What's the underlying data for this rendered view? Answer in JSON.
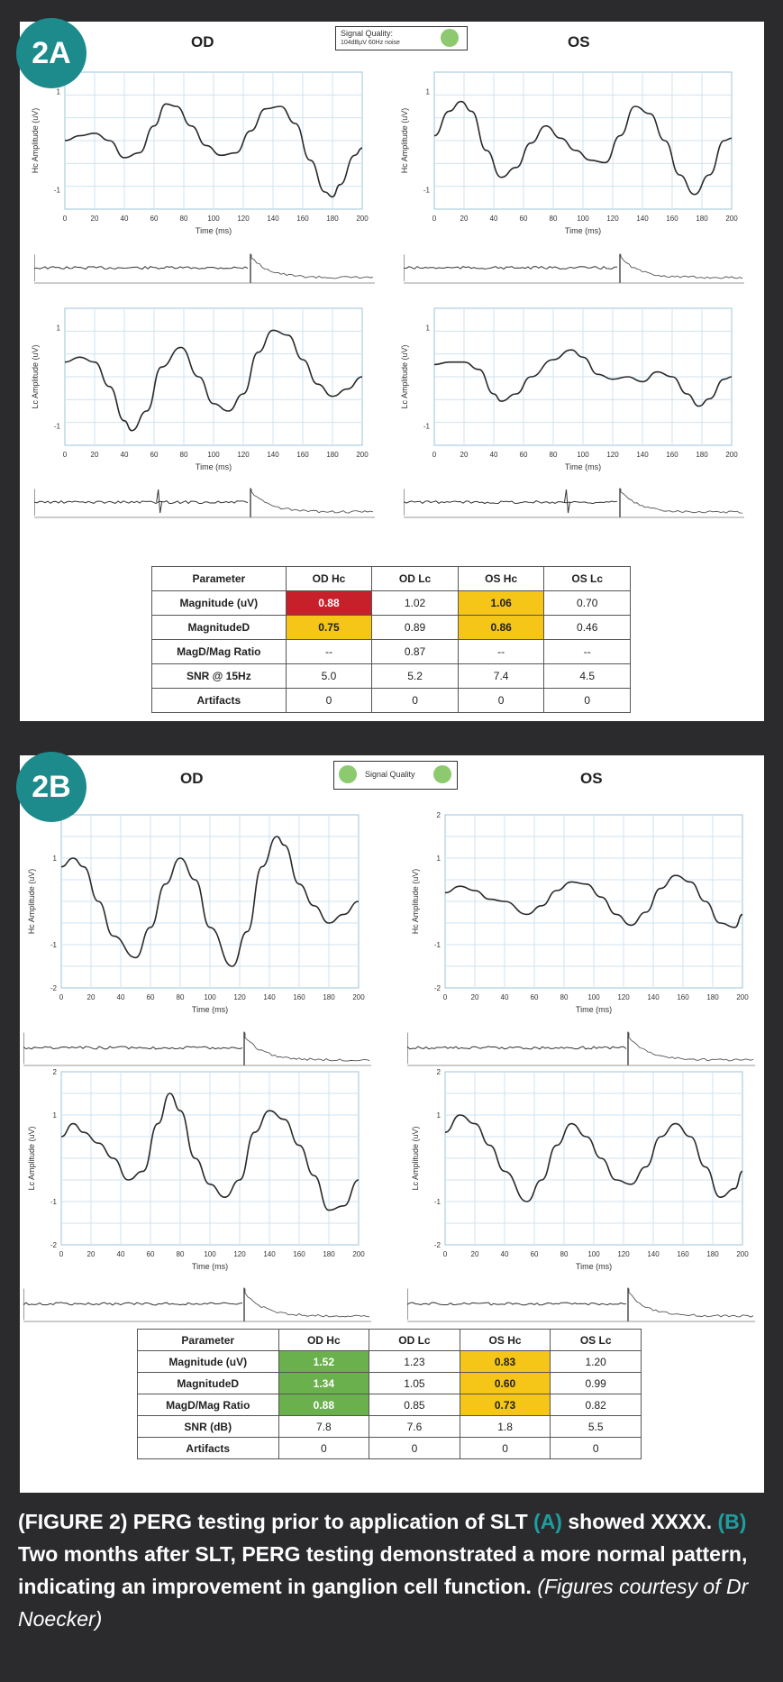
{
  "panels": [
    {
      "badge": "2A",
      "eye_left": "OD",
      "eye_right": "OS",
      "signal_quality": {
        "label": "Signal Quality:",
        "detail": "104dBµV 60Hz noise",
        "indicator_color": "#8dc96f"
      },
      "table": {
        "headers": [
          "Parameter",
          "OD Hc",
          "OD Lc",
          "OS Hc",
          "OS Lc"
        ],
        "rows": [
          {
            "cells": [
              "Magnitude (uV)",
              "0.88",
              "1.02",
              "1.06",
              "0.70"
            ],
            "highlight": [
              null,
              "#c8202a",
              null,
              "#f5c518",
              null
            ]
          },
          {
            "cells": [
              "MagnitudeD",
              "0.75",
              "0.89",
              "0.86",
              "0.46"
            ],
            "highlight": [
              null,
              "#f5c518",
              null,
              "#f5c518",
              null
            ]
          },
          {
            "cells": [
              "MagD/Mag Ratio",
              "--",
              "0.87",
              "--",
              "--"
            ],
            "highlight": [
              null,
              null,
              null,
              null,
              null
            ]
          },
          {
            "cells": [
              "SNR @ 15Hz",
              "5.0",
              "5.2",
              "7.4",
              "4.5"
            ],
            "highlight": [
              null,
              null,
              null,
              null,
              null
            ]
          },
          {
            "cells": [
              "Artifacts",
              "0",
              "0",
              "0",
              "0"
            ],
            "highlight": [
              null,
              null,
              null,
              null,
              null
            ]
          }
        ]
      }
    },
    {
      "badge": "2B",
      "eye_left": "OD",
      "eye_right": "OS",
      "signal_quality": {
        "label": "Signal Quality",
        "detail": "",
        "indicator_color": "#8dc96f"
      },
      "table": {
        "headers": [
          "Parameter",
          "OD Hc",
          "OD Lc",
          "OS Hc",
          "OS Lc"
        ],
        "rows": [
          {
            "cells": [
              "Magnitude (uV)",
              "1.52",
              "1.23",
              "0.83",
              "1.20"
            ],
            "highlight": [
              null,
              "#6ab04c",
              null,
              "#f5c518",
              null
            ]
          },
          {
            "cells": [
              "MagnitudeD",
              "1.34",
              "1.05",
              "0.60",
              "0.99"
            ],
            "highlight": [
              null,
              "#6ab04c",
              null,
              "#f5c518",
              null
            ]
          },
          {
            "cells": [
              "MagD/Mag Ratio",
              "0.88",
              "0.85",
              "0.73",
              "0.82"
            ],
            "highlight": [
              null,
              "#6ab04c",
              null,
              "#f5c518",
              null
            ]
          },
          {
            "cells": [
              "SNR (dB)",
              "7.8",
              "7.6",
              "1.8",
              "5.5"
            ],
            "highlight": [
              null,
              null,
              null,
              null,
              null
            ]
          },
          {
            "cells": [
              "Artifacts",
              "0",
              "0",
              "0",
              "0"
            ],
            "highlight": [
              null,
              null,
              null,
              null,
              null
            ]
          }
        ]
      }
    }
  ],
  "chart_data": [
    {
      "id": "a-od-hc",
      "type": "line",
      "panel": "2A",
      "eye": "OD",
      "ylabel": "Hc Amplitude (uV)",
      "xlabel": "Time (ms)",
      "xlim": [
        0,
        200
      ],
      "ylim": [
        -1.4,
        1.4
      ],
      "yticks": [
        1,
        -1
      ],
      "ytick_labels": [
        "1",
        "-1"
      ],
      "xticks": [
        0,
        20,
        40,
        60,
        80,
        100,
        120,
        140,
        160,
        180,
        200
      ],
      "xtick_labels": [
        "0",
        "20",
        "40",
        "60",
        "80",
        "100",
        "120",
        "140",
        "160",
        "180",
        "200"
      ],
      "x": [
        0,
        10,
        20,
        30,
        40,
        50,
        60,
        68,
        75,
        85,
        95,
        105,
        115,
        125,
        135,
        145,
        155,
        165,
        175,
        180,
        185,
        195,
        200
      ],
      "y": [
        0.0,
        0.1,
        0.15,
        0.0,
        -0.35,
        -0.25,
        0.3,
        0.75,
        0.7,
        0.3,
        -0.1,
        -0.3,
        -0.25,
        0.2,
        0.65,
        0.7,
        0.35,
        -0.4,
        -1.05,
        -1.15,
        -0.9,
        -0.3,
        -0.15
      ]
    },
    {
      "id": "a-os-hc",
      "type": "line",
      "panel": "2A",
      "eye": "OS",
      "ylabel": "Hc Amplitude (uV)",
      "xlabel": "Time (ms)",
      "xlim": [
        0,
        200
      ],
      "ylim": [
        -1.4,
        1.4
      ],
      "yticks": [
        1,
        -1
      ],
      "ytick_labels": [
        "1",
        "-1"
      ],
      "xticks": [
        0,
        20,
        40,
        60,
        80,
        100,
        120,
        140,
        160,
        180,
        200
      ],
      "xtick_labels": [
        "0",
        "20",
        "40",
        "60",
        "80",
        "100",
        "120",
        "140",
        "160",
        "180",
        "200"
      ],
      "x": [
        0,
        10,
        18,
        25,
        35,
        45,
        55,
        65,
        75,
        85,
        95,
        105,
        115,
        125,
        135,
        145,
        155,
        165,
        175,
        185,
        195,
        200
      ],
      "y": [
        0.1,
        0.6,
        0.8,
        0.6,
        -0.2,
        -0.75,
        -0.55,
        -0.05,
        0.3,
        0.05,
        -0.2,
        -0.4,
        -0.45,
        0.1,
        0.7,
        0.55,
        0.0,
        -0.7,
        -1.1,
        -0.7,
        0.0,
        0.05
      ]
    },
    {
      "id": "a-od-lc",
      "type": "line",
      "panel": "2A",
      "eye": "OD",
      "ylabel": "Lc Amplitude (uV)",
      "xlabel": "Time (ms)",
      "xlim": [
        0,
        200
      ],
      "ylim": [
        -1.4,
        1.4
      ],
      "yticks": [
        1,
        -1
      ],
      "ytick_labels": [
        "1",
        "-1"
      ],
      "xticks": [
        0,
        20,
        40,
        60,
        80,
        100,
        120,
        140,
        160,
        180,
        200
      ],
      "xtick_labels": [
        "0",
        "20",
        "40",
        "60",
        "80",
        "100",
        "120",
        "140",
        "160",
        "180",
        "200"
      ],
      "x": [
        0,
        10,
        20,
        30,
        40,
        45,
        55,
        65,
        78,
        90,
        100,
        110,
        120,
        130,
        140,
        150,
        160,
        170,
        180,
        190,
        200
      ],
      "y": [
        0.3,
        0.4,
        0.3,
        -0.2,
        -0.9,
        -1.1,
        -0.7,
        0.2,
        0.6,
        0.0,
        -0.55,
        -0.7,
        -0.35,
        0.5,
        0.95,
        0.85,
        0.35,
        -0.15,
        -0.4,
        -0.25,
        0.0
      ]
    },
    {
      "id": "a-os-lc",
      "type": "line",
      "panel": "2A",
      "eye": "OS",
      "ylabel": "Lc Amplitude (uV)",
      "xlabel": "Time (ms)",
      "xlim": [
        0,
        200
      ],
      "ylim": [
        -1.4,
        1.4
      ],
      "yticks": [
        1,
        -1
      ],
      "ytick_labels": [
        "1",
        "-1"
      ],
      "xticks": [
        0,
        20,
        40,
        60,
        80,
        100,
        120,
        140,
        160,
        180,
        200
      ],
      "xtick_labels": [
        "0",
        "20",
        "40",
        "60",
        "80",
        "100",
        "120",
        "140",
        "160",
        "180",
        "200"
      ],
      "x": [
        0,
        10,
        20,
        30,
        40,
        45,
        55,
        65,
        80,
        92,
        100,
        110,
        120,
        130,
        140,
        150,
        160,
        170,
        178,
        185,
        195,
        200
      ],
      "y": [
        0.25,
        0.3,
        0.3,
        0.15,
        -0.35,
        -0.5,
        -0.35,
        0.0,
        0.35,
        0.55,
        0.4,
        0.05,
        -0.05,
        0.0,
        -0.1,
        0.1,
        0.0,
        -0.35,
        -0.6,
        -0.45,
        -0.05,
        0.0
      ]
    },
    {
      "id": "b-od-hc",
      "type": "line",
      "panel": "2B",
      "eye": "OD",
      "ylabel": "Hc Amplitude (uV)",
      "xlabel": "Time (ms)",
      "xlim": [
        0,
        200
      ],
      "ylim": [
        -2,
        2
      ],
      "yticks": [
        2,
        1,
        -1,
        -2
      ],
      "ytick_labels": [
        "2",
        "1",
        "-1",
        "-2"
      ],
      "xticks": [
        0,
        20,
        40,
        60,
        80,
        100,
        120,
        140,
        160,
        180,
        200
      ],
      "xtick_labels": [
        "0",
        "20",
        "40",
        "60",
        "80",
        "100",
        "120",
        "140",
        "160",
        "180",
        "200"
      ],
      "x": [
        0,
        8,
        15,
        25,
        35,
        50,
        60,
        70,
        80,
        90,
        100,
        115,
        125,
        135,
        145,
        150,
        160,
        170,
        180,
        190,
        200
      ],
      "y": [
        0.8,
        1.0,
        0.8,
        0.0,
        -0.8,
        -1.3,
        -0.6,
        0.4,
        1.0,
        0.5,
        -0.6,
        -1.5,
        -0.7,
        0.8,
        1.5,
        1.3,
        0.4,
        -0.1,
        -0.5,
        -0.3,
        0.0
      ]
    },
    {
      "id": "b-os-hc",
      "type": "line",
      "panel": "2B",
      "eye": "OS",
      "ylabel": "Hc Amplitude (uV)",
      "xlabel": "Time (ms)",
      "xlim": [
        0,
        200
      ],
      "ylim": [
        -2,
        2
      ],
      "yticks": [
        2,
        1,
        -1,
        -2
      ],
      "ytick_labels": [
        "2",
        "1",
        "-1",
        "-2"
      ],
      "xticks": [
        0,
        20,
        40,
        60,
        80,
        100,
        120,
        140,
        160,
        180,
        200
      ],
      "xtick_labels": [
        "0",
        "20",
        "40",
        "60",
        "80",
        "100",
        "120",
        "140",
        "160",
        "180",
        "200"
      ],
      "x": [
        0,
        10,
        20,
        30,
        40,
        55,
        65,
        75,
        85,
        95,
        105,
        115,
        125,
        135,
        145,
        155,
        165,
        175,
        185,
        195,
        200
      ],
      "y": [
        0.2,
        0.35,
        0.25,
        0.05,
        0.0,
        -0.3,
        -0.1,
        0.25,
        0.45,
        0.4,
        0.1,
        -0.3,
        -0.55,
        -0.25,
        0.3,
        0.6,
        0.45,
        0.0,
        -0.5,
        -0.6,
        -0.3
      ]
    },
    {
      "id": "b-od-lc",
      "type": "line",
      "panel": "2B",
      "eye": "OD",
      "ylabel": "Lc Amplitude (uV)",
      "xlabel": "Time (ms)",
      "xlim": [
        0,
        200
      ],
      "ylim": [
        -2,
        2
      ],
      "yticks": [
        2,
        1,
        -1,
        -2
      ],
      "ytick_labels": [
        "2",
        "1",
        "-1",
        "-2"
      ],
      "xticks": [
        0,
        20,
        40,
        60,
        80,
        100,
        120,
        140,
        160,
        180,
        200
      ],
      "xtick_labels": [
        "0",
        "20",
        "40",
        "60",
        "80",
        "100",
        "120",
        "140",
        "160",
        "180",
        "200"
      ],
      "x": [
        0,
        8,
        15,
        25,
        35,
        45,
        55,
        65,
        73,
        80,
        90,
        100,
        110,
        120,
        130,
        140,
        150,
        160,
        170,
        180,
        190,
        200
      ],
      "y": [
        0.5,
        0.8,
        0.6,
        0.35,
        0.0,
        -0.5,
        -0.3,
        0.8,
        1.5,
        1.1,
        0.0,
        -0.6,
        -0.9,
        -0.5,
        0.6,
        1.1,
        0.9,
        0.3,
        -0.4,
        -1.2,
        -1.1,
        -0.5
      ]
    },
    {
      "id": "b-os-lc",
      "type": "line",
      "panel": "2B",
      "eye": "OS",
      "ylabel": "Lc Amplitude (uV)",
      "xlabel": "Time (ms)",
      "xlim": [
        0,
        200
      ],
      "ylim": [
        -2,
        2
      ],
      "yticks": [
        2,
        1,
        -1,
        -2
      ],
      "ytick_labels": [
        "2",
        "1",
        "-1",
        "-2"
      ],
      "xticks": [
        0,
        20,
        40,
        60,
        80,
        100,
        120,
        140,
        160,
        180,
        200
      ],
      "xtick_labels": [
        "0",
        "20",
        "40",
        "60",
        "80",
        "100",
        "120",
        "140",
        "160",
        "180",
        "200"
      ],
      "x": [
        0,
        10,
        20,
        30,
        40,
        55,
        65,
        75,
        85,
        95,
        105,
        115,
        125,
        135,
        145,
        155,
        165,
        175,
        185,
        195,
        200
      ],
      "y": [
        0.6,
        1.0,
        0.8,
        0.3,
        -0.3,
        -1.0,
        -0.5,
        0.3,
        0.8,
        0.5,
        0.0,
        -0.5,
        -0.6,
        -0.2,
        0.5,
        0.8,
        0.5,
        -0.2,
        -0.9,
        -0.7,
        -0.3
      ]
    }
  ],
  "caption": {
    "fig_label": "(FIGURE 2)",
    "part1": " PERG testing prior to application of SLT ",
    "ref_a": "(A)",
    "part2": " showed XXXX. ",
    "ref_b": "(B)",
    "part3": " Two months after SLT, PERG testing demonstrated a more normal pattern, indicating an improvement in ganglion cell function.",
    "credit": " (Figures courtesy of Dr Noecker)"
  }
}
